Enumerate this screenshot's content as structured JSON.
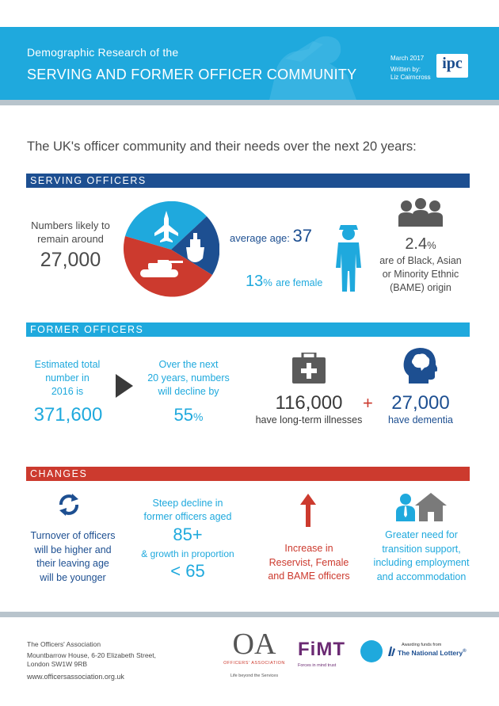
{
  "header": {
    "subtitle": "Demographic Research of the",
    "title": "SERVING AND FORMER OFFICER COMMUNITY",
    "date": "March 2017",
    "written_by_label": "Written by:",
    "author": "Liz Cairncross",
    "logo_text": "ipc",
    "brand_color": "#1fa9dd"
  },
  "intro": "The UK's officer community and their needs over the next 20 years:",
  "serving": {
    "heading": "SERVING OFFICERS",
    "numbers_line1": "Numbers likely to",
    "numbers_line2": "remain around",
    "numbers_value": "27,000",
    "pie_colors": {
      "air": "#1fa9dd",
      "army": "#cc3a2e",
      "navy": "#1d4f91"
    },
    "avg_age_label": "average age:",
    "avg_age_value": "37",
    "female_value": "13",
    "female_pct": "%",
    "female_label": "are female",
    "bame_value": "2.4",
    "bame_pct": "%",
    "bame_line1": "are of Black, Asian",
    "bame_line2": "or Minority Ethnic",
    "bame_line3": "(BAME) origin"
  },
  "former": {
    "heading": "FORMER OFFICERS",
    "est_line1": "Estimated total",
    "est_line2": "number in",
    "est_line3": "2016 is",
    "est_value": "371,600",
    "over_line1": "Over the next",
    "over_line2": "20 years, numbers",
    "over_line3": "will decline by",
    "decline_value": "55",
    "decline_pct": "%",
    "illness_value": "116,000",
    "illness_label": "have long-term illnesses",
    "plus": "+",
    "dementia_value": "27,000",
    "dementia_label": "have dementia"
  },
  "changes": {
    "heading": "CHANGES",
    "turnover_line1": "Turnover of officers",
    "turnover_line2": "will be higher and",
    "turnover_line3": "their leaving age",
    "turnover_line4": "will be younger",
    "steep_line1": "Steep decline in",
    "steep_line2": "former officers aged",
    "steep_value": "85+",
    "growth_label": "& growth in proportion",
    "growth_value": "< 65",
    "increase_line1": "Increase in",
    "increase_line2": "Reservist, Female",
    "increase_line3": "and BAME officers",
    "need_line1": "Greater need for",
    "need_line2": "transition support,",
    "need_line3": "including employment",
    "need_line4": "and accommodation"
  },
  "footer": {
    "org": "The Officers' Association",
    "addr1": "Mountbarrow House, 6-20 Elizabeth Street,",
    "addr2": "London SW1W 9RB",
    "web": "www.officersassociation.org.uk",
    "oa_logo": "OA",
    "oa_sub": "OFFICERS' ASSOCIATION",
    "oa_tagline": "Life beyond the Services",
    "fimt_logo": "FiMT",
    "fimt_sub": "Forces in mind trust",
    "lottery_small": "Awarding funds from",
    "lottery_name": "The National Lottery",
    "lottery_mark": "®"
  }
}
